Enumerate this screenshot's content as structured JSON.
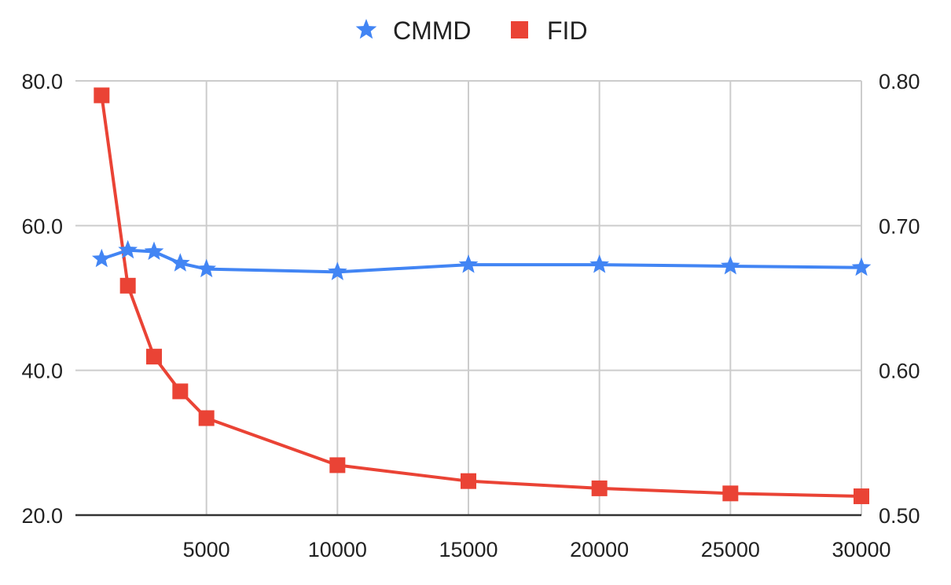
{
  "chart_data": {
    "type": "line",
    "title": "",
    "xlabel": "",
    "ylabel_left": "",
    "ylabel_right": "",
    "x_ticks": [
      5000,
      10000,
      15000,
      20000,
      25000,
      30000
    ],
    "x_tick_labels": [
      "5000",
      "10000",
      "15000",
      "20000",
      "25000",
      "30000"
    ],
    "xlim": [
      0,
      30000
    ],
    "y_left_ticks": [
      20,
      40,
      60,
      80
    ],
    "y_left_tick_labels": [
      "20.0",
      "40.0",
      "60.0",
      "80.0"
    ],
    "y_left_lim": [
      20,
      80
    ],
    "y_right_ticks": [
      0.5,
      0.6,
      0.7,
      0.8
    ],
    "y_right_tick_labels": [
      "0.50",
      "0.60",
      "0.70",
      "0.80"
    ],
    "y_right_lim": [
      0.5,
      0.8
    ],
    "grid": true,
    "legend_position": "top-center",
    "series": [
      {
        "name": "CMMD",
        "axis": "right",
        "marker": "star",
        "color": "#4285f4",
        "x": [
          1000,
          2000,
          3000,
          4000,
          5000,
          10000,
          15000,
          20000,
          25000,
          30000
        ],
        "values": [
          0.677,
          0.683,
          0.682,
          0.674,
          0.67,
          0.668,
          0.673,
          0.673,
          0.672,
          0.671
        ]
      },
      {
        "name": "FID",
        "axis": "left",
        "marker": "square",
        "color": "#ea4335",
        "x": [
          1000,
          2000,
          3000,
          4000,
          5000,
          10000,
          15000,
          20000,
          25000,
          30000
        ],
        "values": [
          78.0,
          51.7,
          41.9,
          37.1,
          33.4,
          26.9,
          24.7,
          23.7,
          23.0,
          22.6
        ]
      }
    ]
  }
}
